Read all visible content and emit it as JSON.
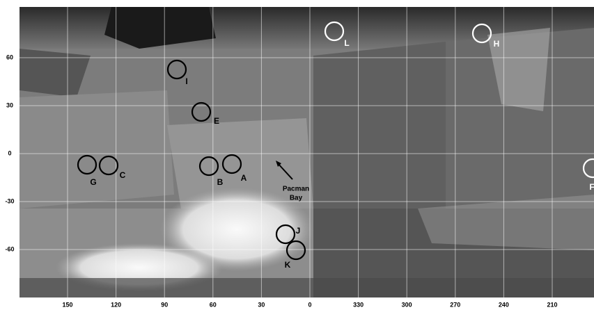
{
  "longitude_labels": [
    150,
    120,
    90,
    60,
    30,
    0,
    330,
    300,
    270,
    240,
    210
  ],
  "latitude_labels": [
    60,
    30,
    0,
    -30,
    -60
  ],
  "features": [
    {
      "label": "I"
    },
    {
      "label": "E"
    },
    {
      "label": "G"
    },
    {
      "label": "C"
    },
    {
      "label": "B"
    },
    {
      "label": "A"
    },
    {
      "label": "L"
    },
    {
      "label": "H"
    },
    {
      "label": "J"
    },
    {
      "label": "K"
    },
    {
      "label": "F"
    }
  ],
  "annotation": [
    "Pacman",
    "Bay"
  ]
}
